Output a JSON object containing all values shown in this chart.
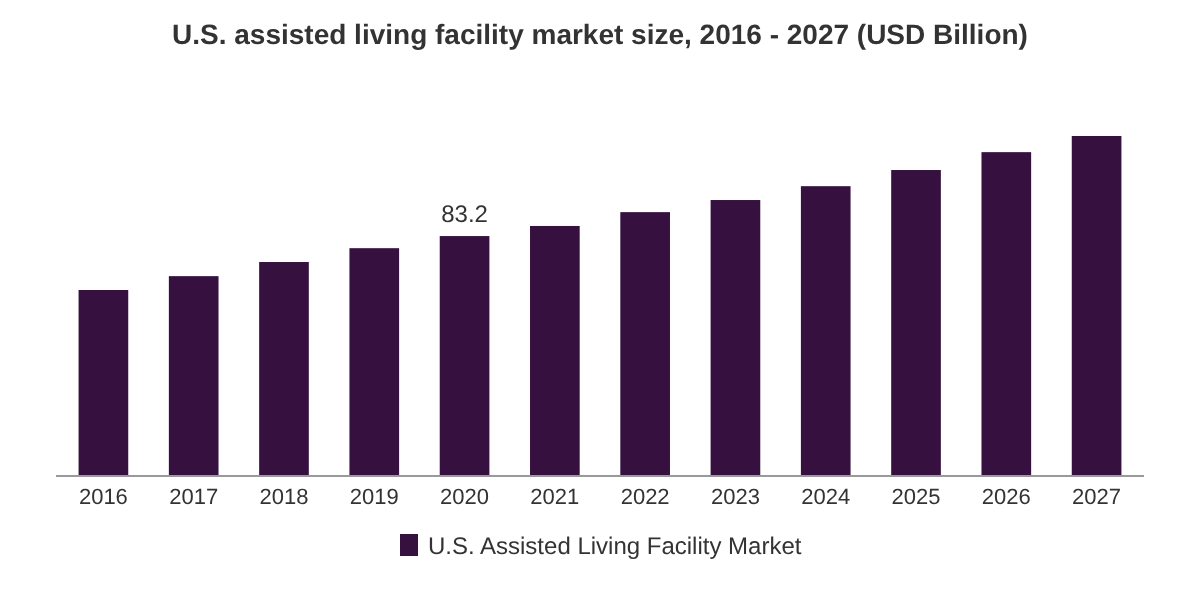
{
  "chart_data": {
    "type": "bar",
    "title": "U.S. assisted living facility market size, 2016 - 2027 (USD Billion)",
    "categories": [
      "2016",
      "2017",
      "2018",
      "2019",
      "2020",
      "2021",
      "2022",
      "2023",
      "2024",
      "2025",
      "2026",
      "2027"
    ],
    "series": [
      {
        "name": "U.S. Assisted Living Facility Market",
        "color": "#36103f",
        "values": [
          64.5,
          69.3,
          74.2,
          79.0,
          83.2,
          86.7,
          91.5,
          95.7,
          100.5,
          106.1,
          112.3,
          117.9
        ],
        "value_labels": [
          null,
          null,
          null,
          null,
          "83.2",
          null,
          null,
          null,
          null,
          null,
          null,
          null
        ]
      }
    ],
    "legend": "bottom",
    "grid": false
  }
}
